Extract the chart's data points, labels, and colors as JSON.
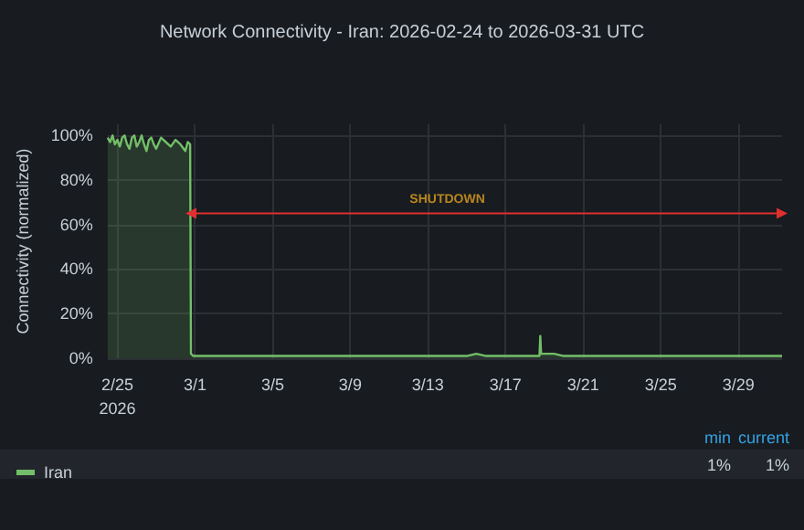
{
  "chart_data": {
    "type": "area",
    "title": "Network Connectivity - Iran: 2026-02-24 to 2026-03-31 UTC",
    "ylabel": "Connectivity (normalized)",
    "x": [
      "2026-02-24T12:00",
      "2026-02-24T15:00",
      "2026-02-24T18:00",
      "2026-02-24T21:00",
      "2026-02-25T00:00",
      "2026-02-25T03:00",
      "2026-02-25T06:00",
      "2026-02-25T09:00",
      "2026-02-25T12:00",
      "2026-02-25T15:00",
      "2026-02-25T18:00",
      "2026-02-25T21:00",
      "2026-02-26T00:00",
      "2026-02-26T03:00",
      "2026-02-26T06:00",
      "2026-02-26T09:00",
      "2026-02-26T12:00",
      "2026-02-26T15:00",
      "2026-02-26T18:00",
      "2026-02-26T21:00",
      "2026-02-27T00:00",
      "2026-02-27T06:00",
      "2026-02-27T12:00",
      "2026-02-27T18:00",
      "2026-02-28T00:00",
      "2026-02-28T06:00",
      "2026-02-28T12:00",
      "2026-02-28T15:00",
      "2026-02-28T18:00",
      "2026-02-28T19:00",
      "2026-02-28T22:00",
      "2026-03-03T00:00",
      "2026-03-07T00:00",
      "2026-03-11T00:00",
      "2026-03-15T00:00",
      "2026-03-15T12:00",
      "2026-03-16T00:00",
      "2026-03-18T18:00",
      "2026-03-18T19:00",
      "2026-03-18T20:00",
      "2026-03-19T12:00",
      "2026-03-20T00:00",
      "2026-03-24T00:00",
      "2026-03-28T00:00",
      "2026-03-31T06:00"
    ],
    "series": [
      {
        "name": "Iran",
        "color": "#73bf69",
        "values": [
          99,
          97,
          100,
          96,
          98,
          95,
          99,
          100,
          96,
          94,
          99,
          100,
          95,
          97,
          100,
          96,
          93,
          98,
          99,
          96,
          94,
          99,
          97,
          95,
          98,
          96,
          93,
          97,
          96,
          2,
          1,
          1,
          1,
          1,
          1,
          2,
          1,
          1,
          10,
          2,
          2,
          1,
          1,
          1,
          1
        ]
      },
      {
        "type": "line",
        "color": "#e02f2f",
        "marker": "triangle",
        "x": [
          "2026-02-28T19:00",
          "2026-03-31T06:00"
        ],
        "values": [
          65,
          65
        ]
      }
    ],
    "xlim": [
      "2026-02-24T12:00",
      "2026-03-31T06:00"
    ],
    "xticks": [
      {
        "value": "2026-02-25",
        "label": "2/25\n2026"
      },
      {
        "value": "2026-03-01",
        "label": "3/1"
      },
      {
        "value": "2026-03-05",
        "label": "3/5"
      },
      {
        "value": "2026-03-09",
        "label": "3/9"
      },
      {
        "value": "2026-03-13",
        "label": "3/13"
      },
      {
        "value": "2026-03-17",
        "label": "3/17"
      },
      {
        "value": "2026-03-21",
        "label": "3/21"
      },
      {
        "value": "2026-03-25",
        "label": "3/25"
      },
      {
        "value": "2026-03-29",
        "label": "3/29"
      }
    ],
    "ylim": [
      0,
      105
    ],
    "yticks": [
      {
        "value": 0,
        "label": "0%"
      },
      {
        "value": 20,
        "label": "20%"
      },
      {
        "value": 40,
        "label": "40%"
      },
      {
        "value": 60,
        "label": "60%"
      },
      {
        "value": 80,
        "label": "80%"
      },
      {
        "value": 100,
        "label": "100%"
      }
    ],
    "annotations": [
      {
        "text": "SHUTDOWN",
        "x": "2026-03-14",
        "y": 65
      },
      "min",
      "current",
      "1%",
      "1%"
    ],
    "grid": true,
    "legend": "bottom"
  }
}
